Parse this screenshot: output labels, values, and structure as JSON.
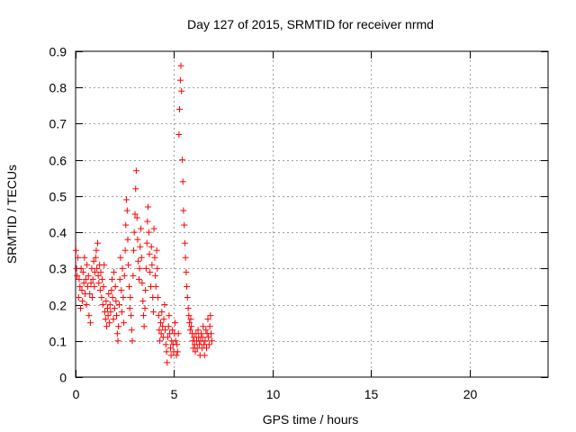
{
  "chart_data": {
    "type": "scatter",
    "title": "Day 127 of 2015, SRMTID for receiver nrmd",
    "xlabel": "GPS time / hours",
    "ylabel": "SRMTID / TECUs",
    "xlim": [
      0,
      24
    ],
    "ylim": [
      0,
      0.9
    ],
    "xticks": [
      0,
      5,
      10,
      15,
      20
    ],
    "yticks": [
      0,
      0.1,
      0.2,
      0.3,
      0.4,
      0.5,
      0.6,
      0.7,
      0.8,
      0.9
    ],
    "grid": true,
    "marker": "+",
    "series": [
      {
        "name": "SRMTID",
        "color": "#ff0000",
        "points": [
          [
            0.02,
            0.35
          ],
          [
            0.05,
            0.3
          ],
          [
            0.08,
            0.28
          ],
          [
            0.12,
            0.33
          ],
          [
            0.15,
            0.22
          ],
          [
            0.18,
            0.27
          ],
          [
            0.22,
            0.25
          ],
          [
            0.25,
            0.19
          ],
          [
            0.28,
            0.3
          ],
          [
            0.32,
            0.24
          ],
          [
            0.35,
            0.21
          ],
          [
            0.38,
            0.29
          ],
          [
            0.42,
            0.26
          ],
          [
            0.45,
            0.33
          ],
          [
            0.48,
            0.23
          ],
          [
            0.52,
            0.27
          ],
          [
            0.55,
            0.2
          ],
          [
            0.58,
            0.31
          ],
          [
            0.62,
            0.25
          ],
          [
            0.65,
            0.28
          ],
          [
            0.68,
            0.17
          ],
          [
            0.72,
            0.23
          ],
          [
            0.75,
            0.15
          ],
          [
            0.78,
            0.26
          ],
          [
            0.82,
            0.3
          ],
          [
            0.85,
            0.22
          ],
          [
            0.88,
            0.27
          ],
          [
            0.92,
            0.32
          ],
          [
            0.95,
            0.25
          ],
          [
            0.98,
            0.29
          ],
          [
            1.02,
            0.33
          ],
          [
            1.05,
            0.35
          ],
          [
            1.08,
            0.3
          ],
          [
            1.12,
            0.37
          ],
          [
            1.15,
            0.28
          ],
          [
            1.18,
            0.26
          ],
          [
            1.22,
            0.31
          ],
          [
            1.25,
            0.24
          ],
          [
            1.28,
            0.29
          ],
          [
            1.32,
            0.22
          ],
          [
            1.35,
            0.27
          ],
          [
            1.38,
            0.2
          ],
          [
            1.42,
            0.25
          ],
          [
            1.45,
            0.31
          ],
          [
            1.48,
            0.18
          ],
          [
            1.52,
            0.16
          ],
          [
            1.55,
            0.21
          ],
          [
            1.58,
            0.14
          ],
          [
            1.62,
            0.19
          ],
          [
            1.65,
            0.17
          ],
          [
            1.68,
            0.23
          ],
          [
            1.72,
            0.15
          ],
          [
            1.75,
            0.2
          ],
          [
            1.78,
            0.18
          ],
          [
            1.82,
            0.24
          ],
          [
            1.85,
            0.27
          ],
          [
            1.88,
            0.22
          ],
          [
            1.92,
            0.16
          ],
          [
            1.95,
            0.29
          ],
          [
            1.98,
            0.19
          ],
          [
            2.02,
            0.25
          ],
          [
            2.05,
            0.21
          ],
          [
            2.08,
            0.17
          ],
          [
            2.12,
            0.12
          ],
          [
            2.15,
            0.1
          ],
          [
            2.18,
            0.14
          ],
          [
            2.22,
            0.2
          ],
          [
            2.25,
            0.27
          ],
          [
            2.28,
            0.33
          ],
          [
            2.32,
            0.24
          ],
          [
            2.35,
            0.18
          ],
          [
            2.38,
            0.3
          ],
          [
            2.42,
            0.22
          ],
          [
            2.45,
            0.15
          ],
          [
            2.48,
            0.28
          ],
          [
            2.52,
            0.35
          ],
          [
            2.55,
            0.42
          ],
          [
            2.58,
            0.49
          ],
          [
            2.62,
            0.46
          ],
          [
            2.65,
            0.38
          ],
          [
            2.68,
            0.31
          ],
          [
            2.72,
            0.25
          ],
          [
            2.75,
            0.19
          ],
          [
            2.78,
            0.22
          ],
          [
            2.82,
            0.17
          ],
          [
            2.85,
            0.13
          ],
          [
            2.88,
            0.1
          ],
          [
            2.92,
            0.28
          ],
          [
            2.95,
            0.35
          ],
          [
            2.98,
            0.4
          ],
          [
            3.02,
            0.45
          ],
          [
            3.05,
            0.52
          ],
          [
            3.08,
            0.57
          ],
          [
            3.12,
            0.44
          ],
          [
            3.15,
            0.38
          ],
          [
            3.18,
            0.32
          ],
          [
            3.22,
            0.27
          ],
          [
            3.25,
            0.3
          ],
          [
            3.28,
            0.36
          ],
          [
            3.32,
            0.41
          ],
          [
            3.35,
            0.33
          ],
          [
            3.38,
            0.26
          ],
          [
            3.42,
            0.21
          ],
          [
            3.45,
            0.17
          ],
          [
            3.48,
            0.14
          ],
          [
            3.52,
            0.19
          ],
          [
            3.55,
            0.24
          ],
          [
            3.58,
            0.3
          ],
          [
            3.62,
            0.37
          ],
          [
            3.65,
            0.43
          ],
          [
            3.68,
            0.47
          ],
          [
            3.72,
            0.4
          ],
          [
            3.75,
            0.34
          ],
          [
            3.78,
            0.29
          ],
          [
            3.82,
            0.25
          ],
          [
            3.85,
            0.36
          ],
          [
            3.88,
            0.31
          ],
          [
            3.92,
            0.22
          ],
          [
            3.95,
            0.18
          ],
          [
            3.98,
            0.41
          ],
          [
            4.02,
            0.33
          ],
          [
            4.05,
            0.28
          ],
          [
            4.08,
            0.25
          ],
          [
            4.12,
            0.35
          ],
          [
            4.15,
            0.3
          ],
          [
            4.18,
            0.22
          ],
          [
            4.22,
            0.17
          ],
          [
            4.25,
            0.13
          ],
          [
            4.28,
            0.1
          ],
          [
            4.32,
            0.15
          ],
          [
            4.35,
            0.12
          ],
          [
            4.38,
            0.18
          ],
          [
            4.42,
            0.14
          ],
          [
            4.45,
            0.11
          ],
          [
            4.48,
            0.16
          ],
          [
            4.52,
            0.2
          ],
          [
            4.55,
            0.13
          ],
          [
            4.58,
            0.09
          ],
          [
            4.62,
            0.07
          ],
          [
            4.65,
            0.04
          ],
          [
            4.68,
            0.11
          ],
          [
            4.72,
            0.14
          ],
          [
            4.75,
            0.17
          ],
          [
            4.78,
            0.12
          ],
          [
            4.82,
            0.08
          ],
          [
            4.85,
            0.06
          ],
          [
            4.88,
            0.1
          ],
          [
            4.92,
            0.13
          ],
          [
            4.95,
            0.09
          ],
          [
            4.98,
            0.07
          ],
          [
            5.02,
            0.12
          ],
          [
            5.05,
            0.15
          ],
          [
            5.08,
            0.1
          ],
          [
            5.12,
            0.06
          ],
          [
            5.15,
            0.09
          ],
          [
            5.18,
            0.07
          ],
          [
            5.22,
            0.12
          ],
          [
            5.25,
            0.67
          ],
          [
            5.28,
            0.74
          ],
          [
            5.32,
            0.82
          ],
          [
            5.35,
            0.86
          ],
          [
            5.38,
            0.79
          ],
          [
            5.42,
            0.6
          ],
          [
            5.45,
            0.54
          ],
          [
            5.48,
            0.46
          ],
          [
            5.52,
            0.42
          ],
          [
            5.55,
            0.37
          ],
          [
            5.58,
            0.33
          ],
          [
            5.62,
            0.29
          ],
          [
            5.65,
            0.25
          ],
          [
            5.68,
            0.22
          ],
          [
            5.72,
            0.19
          ],
          [
            5.75,
            0.17
          ],
          [
            5.78,
            0.15
          ],
          [
            5.82,
            0.13
          ],
          [
            5.85,
            0.16
          ],
          [
            5.88,
            0.14
          ],
          [
            5.92,
            0.12
          ],
          [
            5.95,
            0.1
          ],
          [
            5.98,
            0.08
          ],
          [
            6.02,
            0.11
          ],
          [
            6.05,
            0.09
          ],
          [
            6.08,
            0.07
          ],
          [
            6.12,
            0.12
          ],
          [
            6.15,
            0.1
          ],
          [
            6.18,
            0.08
          ],
          [
            6.22,
            0.13
          ],
          [
            6.25,
            0.11
          ],
          [
            6.28,
            0.09
          ],
          [
            6.32,
            0.06
          ],
          [
            6.35,
            0.1
          ],
          [
            6.38,
            0.12
          ],
          [
            6.42,
            0.08
          ],
          [
            6.45,
            0.11
          ],
          [
            6.48,
            0.14
          ],
          [
            6.52,
            0.09
          ],
          [
            6.55,
            0.06
          ],
          [
            6.58,
            0.1
          ],
          [
            6.62,
            0.13
          ],
          [
            6.65,
            0.08
          ],
          [
            6.68,
            0.12
          ],
          [
            6.72,
            0.16
          ],
          [
            6.75,
            0.11
          ],
          [
            6.78,
            0.09
          ],
          [
            6.82,
            0.14
          ],
          [
            6.85,
            0.17
          ],
          [
            6.88,
            0.12
          ],
          [
            6.92,
            0.1
          ]
        ]
      }
    ]
  }
}
